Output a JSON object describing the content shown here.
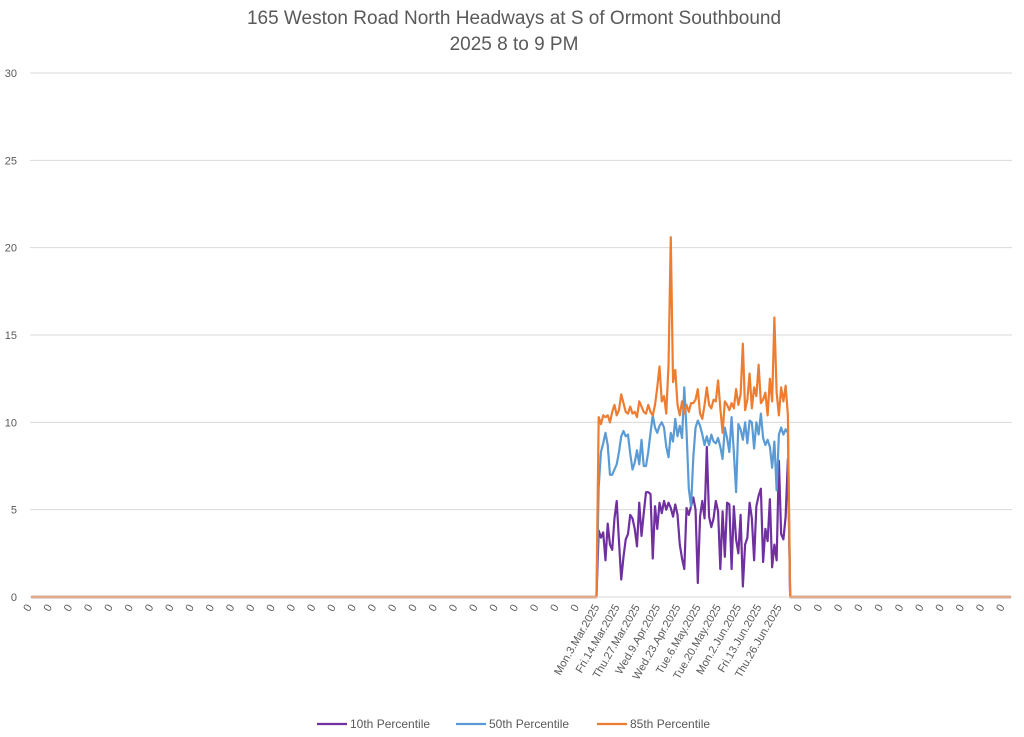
{
  "chart_data": {
    "type": "line",
    "title": "165 Weston Road North Headways at S of Ormont Southbound",
    "subtitle": "2025 8 to 9 PM",
    "xlabel": "",
    "ylabel": "",
    "ylim": [
      0,
      30
    ],
    "yticks": [
      0,
      5,
      10,
      15,
      20,
      25,
      30
    ],
    "grid": true,
    "legend_position": "bottom",
    "x_label_interval": 9,
    "leading_zero_categories": 252,
    "trailing_zero_categories": 99,
    "zero_category_label": "0",
    "date_labels": [
      "Mon.3.Mar.2025",
      "Fri.14.Mar.2025",
      "Thu.27.Mar.2025",
      "Wed.9.Apr.2025",
      "Wed.23.Apr.2025",
      "Tue.6.May.2025",
      "Tue.20.May.2025",
      "Mon.2.Jun.2025",
      "Fri.13.Jun.2025",
      "Thu.26.Jun.2025"
    ],
    "series": [
      {
        "name": "10th Percentile",
        "color": "#7030A0",
        "values": [
          3.8,
          3.4,
          3.7,
          2.1,
          4.2,
          3.0,
          2.7,
          4.5,
          5.5,
          3.2,
          1.0,
          2.3,
          3.3,
          3.6,
          4.7,
          4.5,
          3.9,
          2.9,
          5.4,
          3.5,
          4.8,
          6.0,
          6.0,
          5.9,
          2.2,
          5.2,
          3.9,
          5.4,
          4.8,
          5.5,
          5.0,
          5.4,
          5.1,
          4.6,
          5.3,
          4.7,
          3.0,
          2.2,
          1.6,
          5.1,
          4.7,
          5.2,
          5.7,
          5.0,
          0.8,
          4.6,
          5.5,
          4.5,
          8.6,
          4.6,
          4.0,
          4.5,
          5.5,
          4.9,
          1.6,
          4.9,
          2.3,
          5.4,
          5.3,
          1.6,
          5.2,
          3.3,
          2.5,
          4.7,
          0.6,
          3.0,
          3.4,
          5.4,
          4.5,
          2.1,
          5.2,
          5.8,
          6.2,
          2.0,
          3.9,
          3.2,
          5.6,
          1.7,
          3.0,
          2.1,
          7.8,
          3.6,
          3.3,
          4.6,
          7.9
        ]
      },
      {
        "name": "50th Percentile",
        "color": "#5B9BD5",
        "values": [
          6.3,
          8.3,
          8.8,
          9.4,
          8.7,
          7.0,
          7.0,
          7.3,
          7.6,
          8.3,
          9.2,
          9.5,
          9.2,
          9.3,
          8.2,
          7.3,
          7.7,
          8.4,
          7.6,
          9.0,
          7.5,
          7.5,
          8.3,
          9.4,
          10.4,
          9.7,
          9.4,
          9.8,
          10.0,
          9.7,
          8.6,
          8.0,
          9.4,
          8.9,
          10.2,
          9.2,
          9.8,
          9.1,
          12.0,
          9.5,
          6.2,
          5.2,
          8.0,
          9.7,
          10.1,
          9.8,
          9.3,
          8.7,
          9.2,
          8.7,
          9.3,
          8.9,
          8.8,
          9.1,
          8.6,
          7.9,
          9.7,
          9.1,
          8.3,
          10.3,
          8.3,
          6.0,
          9.9,
          9.6,
          9.0,
          10.0,
          8.8,
          10.1,
          10.0,
          8.5,
          10.0,
          9.3,
          10.5,
          9.1,
          8.7,
          9.0,
          8.6,
          7.4,
          8.9,
          6.1,
          9.3,
          9.7,
          9.3,
          9.6,
          9.4
        ]
      },
      {
        "name": "85th Percentile",
        "color": "#ED7D31",
        "values": [
          10.3,
          9.9,
          10.4,
          10.3,
          10.4,
          10.0,
          10.6,
          11.0,
          10.4,
          10.7,
          11.6,
          11.1,
          10.6,
          10.5,
          10.9,
          10.5,
          10.6,
          10.3,
          11.2,
          10.9,
          10.6,
          10.5,
          11.0,
          10.6,
          10.4,
          11.0,
          12.0,
          13.2,
          11.2,
          11.5,
          10.5,
          13.3,
          20.6,
          12.3,
          13.0,
          11.0,
          10.4,
          11.2,
          10.5,
          11.0,
          10.6,
          11.1,
          11.1,
          11.3,
          11.9,
          10.5,
          10.2,
          11.0,
          12.0,
          11.0,
          10.8,
          11.3,
          11.2,
          12.4,
          10.8,
          9.4,
          11.2,
          11.0,
          10.7,
          11.1,
          10.8,
          11.9,
          11.0,
          11.6,
          14.5,
          10.7,
          11.3,
          12.8,
          10.8,
          12.0,
          11.5,
          13.3,
          11.1,
          11.3,
          11.7,
          10.4,
          12.5,
          11.2,
          16.0,
          11.7,
          10.4,
          12.0,
          11.2,
          12.1,
          10.4
        ]
      }
    ]
  }
}
